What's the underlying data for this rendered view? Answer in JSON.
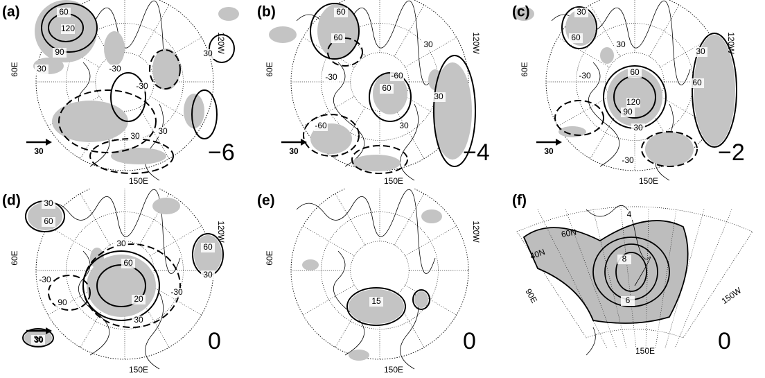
{
  "panels": [
    {
      "label": "(a)",
      "lag": "−6",
      "reference": "30",
      "lon_labels": [
        "60E",
        "120W",
        "150E"
      ],
      "contour_labels": [
        "60",
        "120",
        "90",
        "30",
        "-30",
        "30",
        "-30",
        "30",
        "30"
      ]
    },
    {
      "label": "(b)",
      "lag": "−4",
      "reference": "30",
      "lon_labels": [
        "60E",
        "120W",
        "150E"
      ],
      "contour_labels": [
        "60",
        "60",
        "-60",
        "-30",
        "60",
        "-60",
        "30",
        "30",
        "30"
      ]
    },
    {
      "label": "(c)",
      "lag": "−2",
      "reference": "30",
      "lon_labels": [
        "60E",
        "120W",
        "150E"
      ],
      "contour_labels": [
        "30",
        "60",
        "-30",
        "30",
        "60",
        "120",
        "90",
        "30",
        "-30",
        "60",
        "30"
      ]
    },
    {
      "label": "(d)",
      "lag": "0",
      "reference": "30",
      "lon_labels": [
        "60E",
        "120W",
        "150E"
      ],
      "contour_labels": [
        "30",
        "60",
        "-30",
        "60",
        "30",
        "90",
        "20",
        "-30",
        "30",
        "60",
        "30",
        "30"
      ]
    },
    {
      "label": "(e)",
      "lag": "0",
      "lon_labels": [
        "60E",
        "120W",
        "150E"
      ],
      "contour_labels": [
        "15"
      ]
    },
    {
      "label": "(f)",
      "lag": "0",
      "lon_labels": [
        "40N",
        "60N",
        "90E",
        "150W",
        "150E"
      ],
      "contour_labels": [
        "4",
        "8",
        "6"
      ]
    }
  ]
}
